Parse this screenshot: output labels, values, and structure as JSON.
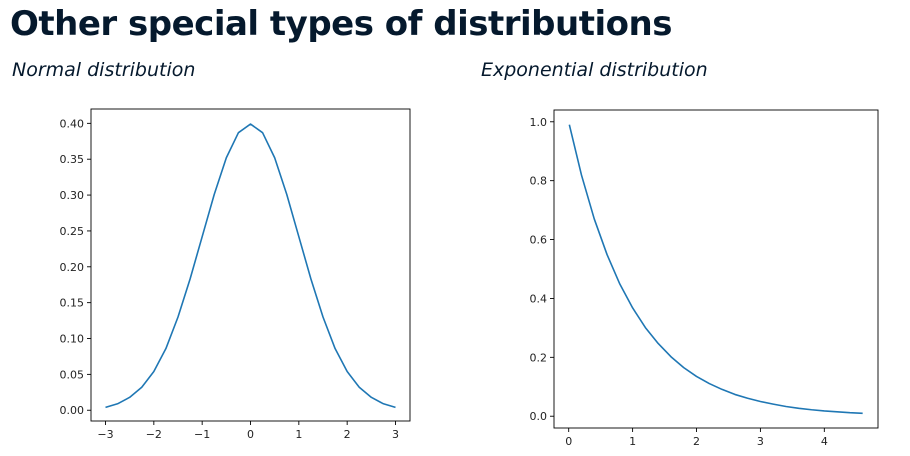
{
  "page": {
    "title": "Other special types of distributions",
    "left_subtitle": "Normal distribution",
    "right_subtitle": "Exponential distribution"
  },
  "colors": {
    "title": "#05192d",
    "line": "#1f77b4",
    "axis": "#000000"
  },
  "chart_data": [
    {
      "type": "line",
      "x": [
        -3.0,
        -2.75,
        -2.5,
        -2.25,
        -2.0,
        -1.75,
        -1.5,
        -1.25,
        -1.0,
        -0.75,
        -0.5,
        -0.25,
        0.0,
        0.25,
        0.5,
        0.75,
        1.0,
        1.25,
        1.5,
        1.75,
        2.0,
        2.25,
        2.5,
        2.75,
        3.0
      ],
      "series": [
        {
          "values": [
            0.004,
            0.009,
            0.018,
            0.032,
            0.054,
            0.086,
            0.13,
            0.183,
            0.242,
            0.301,
            0.352,
            0.387,
            0.399,
            0.387,
            0.352,
            0.301,
            0.242,
            0.183,
            0.13,
            0.086,
            0.054,
            0.032,
            0.018,
            0.009,
            0.004
          ]
        }
      ],
      "xlim": [
        -3.3,
        3.3
      ],
      "ylim": [
        -0.015,
        0.42
      ],
      "xticks": [
        -3,
        -2,
        -1,
        0,
        1,
        2,
        3
      ],
      "xtick_labels": [
        "−3",
        "−2",
        "−1",
        "0",
        "1",
        "2",
        "3"
      ],
      "yticks": [
        0.0,
        0.05,
        0.1,
        0.15,
        0.2,
        0.25,
        0.3,
        0.35,
        0.4
      ],
      "ytick_labels": [
        "0.00",
        "0.05",
        "0.10",
        "0.15",
        "0.20",
        "0.25",
        "0.30",
        "0.35",
        "0.40"
      ],
      "grid": false,
      "title": "",
      "xlabel": "",
      "ylabel": ""
    },
    {
      "type": "line",
      "x": [
        0.01,
        0.2,
        0.4,
        0.6,
        0.8,
        1.0,
        1.2,
        1.4,
        1.6,
        1.8,
        2.0,
        2.2,
        2.4,
        2.6,
        2.8,
        3.0,
        3.2,
        3.4,
        3.6,
        3.8,
        4.0,
        4.2,
        4.4,
        4.6
      ],
      "series": [
        {
          "values": [
            0.99,
            0.819,
            0.67,
            0.549,
            0.449,
            0.368,
            0.301,
            0.247,
            0.202,
            0.165,
            0.135,
            0.111,
            0.091,
            0.074,
            0.061,
            0.05,
            0.041,
            0.033,
            0.027,
            0.022,
            0.018,
            0.015,
            0.012,
            0.01
          ]
        }
      ],
      "xlim": [
        -0.23,
        4.84
      ],
      "ylim": [
        -0.04,
        1.04
      ],
      "xticks": [
        0,
        1,
        2,
        3,
        4
      ],
      "xtick_labels": [
        "0",
        "1",
        "2",
        "3",
        "4"
      ],
      "yticks": [
        0.0,
        0.2,
        0.4,
        0.6,
        0.8,
        1.0
      ],
      "ytick_labels": [
        "0.0",
        "0.2",
        "0.4",
        "0.6",
        "0.8",
        "1.0"
      ],
      "grid": false,
      "title": "",
      "xlabel": "",
      "ylabel": ""
    }
  ]
}
